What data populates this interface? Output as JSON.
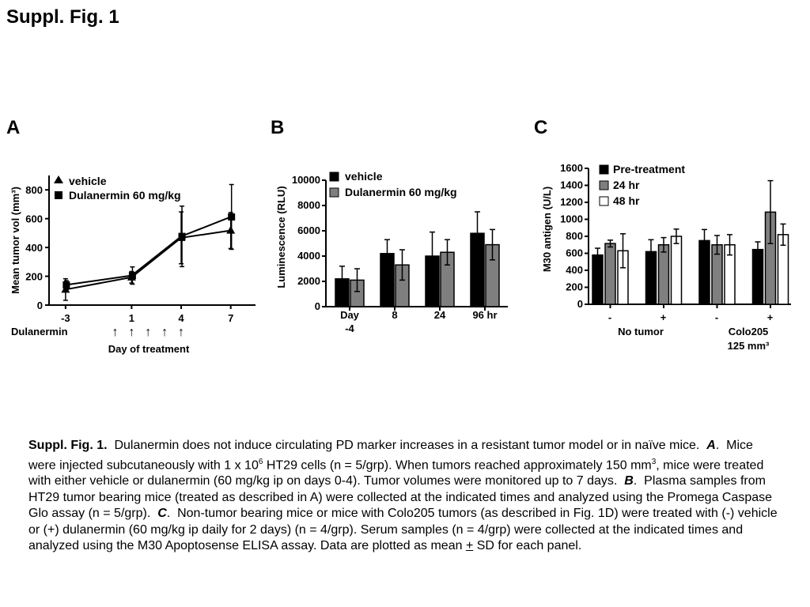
{
  "page": {
    "title": "Suppl. Fig. 1"
  },
  "colors": {
    "vehicle": "#000000",
    "dulanermin": "#7f7f7f",
    "pre_treatment": "#000000",
    "hr24": "#7f7f7f",
    "hr48": "#ffffff",
    "outline": "#000000"
  },
  "panels": {
    "a": "A",
    "b": "B",
    "c": "C"
  },
  "chart_data": [
    {
      "id": "A",
      "type": "line",
      "title": "",
      "xlabel": "Day of treatment",
      "ylabel": "Mean tumor vol (mm³)",
      "x": [
        -3,
        1,
        4,
        7
      ],
      "xlim": [
        -4,
        8.5
      ],
      "ylim": [
        0,
        900
      ],
      "yticks": [
        0,
        200,
        400,
        600,
        800
      ],
      "xticks": [
        -3,
        1,
        4,
        7
      ],
      "legend_position": "top-left",
      "series": [
        {
          "name": "vehicle",
          "marker": "triangle",
          "values": [
            108,
            193,
            467,
            518
          ],
          "errors": [
            75,
            40,
            180,
            125
          ]
        },
        {
          "name": "Dulanermin 60 mg/kg",
          "marker": "square",
          "values": [
            140,
            205,
            477,
            612
          ],
          "errors": [
            30,
            60,
            210,
            225
          ]
        }
      ],
      "dosing": {
        "label": "Dulanermin",
        "days": [
          0,
          1,
          2,
          3,
          4
        ],
        "marker": "↑"
      }
    },
    {
      "id": "B",
      "type": "bar",
      "title": "",
      "xlabel": "",
      "ylabel": "Luminescence (RLU)",
      "categories": [
        "Day -4",
        "8",
        "24",
        "96 hr"
      ],
      "ylim": [
        0,
        10000
      ],
      "yticks": [
        0,
        2000,
        4000,
        6000,
        8000,
        10000
      ],
      "legend_position": "top-left",
      "series": [
        {
          "name": "vehicle",
          "values": [
            2200,
            4200,
            4000,
            5800
          ],
          "errors": [
            1000,
            1100,
            1900,
            1700
          ]
        },
        {
          "name": "Dulanermin 60 mg/kg",
          "values": [
            2100,
            3300,
            4300,
            4900
          ],
          "errors": [
            900,
            1200,
            1000,
            1200
          ]
        }
      ]
    },
    {
      "id": "C",
      "type": "bar",
      "title": "",
      "xlabel": "",
      "ylabel": "M30 antigen (U/L)",
      "categories": [
        "-",
        "+",
        "-",
        "+"
      ],
      "groups": [
        "No tumor",
        "Colo205 125 mm³"
      ],
      "ylim": [
        0,
        1600
      ],
      "yticks": [
        0,
        200,
        400,
        600,
        800,
        1000,
        1200,
        1400,
        1600
      ],
      "legend_position": "top-left",
      "series": [
        {
          "name": "Pre-treatment",
          "values": [
            580,
            620,
            750,
            645
          ],
          "errors": [
            80,
            140,
            130,
            90
          ]
        },
        {
          "name": "24 hr",
          "values": [
            715,
            700,
            700,
            1085
          ],
          "errors": [
            40,
            85,
            110,
            370
          ]
        },
        {
          "name": "48 hr",
          "values": [
            630,
            800,
            700,
            820
          ],
          "errors": [
            200,
            85,
            120,
            125
          ]
        }
      ]
    }
  ],
  "chart_text": {
    "a_xlabel": "Day of treatment",
    "a_ylabel": "Mean tumor vol (mm³)",
    "a_dosing_label": "Dulanermin",
    "a_legend": [
      "vehicle",
      "Dulanermin 60 mg/kg"
    ],
    "b_ylabel": "Luminescence (RLU)",
    "b_categories": [
      "Day",
      "-4",
      "8",
      "24",
      "96 hr"
    ],
    "b_legend": [
      "vehicle",
      "Dulanermin 60 mg/kg"
    ],
    "c_ylabel": "M30 antigen (U/L)",
    "c_legend": [
      "Pre-treatment",
      "24 hr",
      "48 hr"
    ],
    "c_group_no_tumor": "No tumor",
    "c_group_colo": "Colo205",
    "c_group_colo_size": "125 mm³"
  },
  "caption": {
    "label": "Suppl. Fig. 1.",
    "intro": "Dulanermin does not induce circulating PD marker increases in a resistant tumor model or in naïve mice.",
    "a_letter": "A",
    "a_text_1": "Mice were injected subcutaneously with 1 x 10",
    "a_sup": "6",
    "a_text_2": " HT29 cells (n = 5/grp).  When tumors reached approximately 150 mm",
    "a_sup2": "3",
    "a_text_3": ", mice were treated with either vehicle or dulanermin (60 mg/kg ip on days 0-4).  Tumor volumes were monitored up to 7 days.",
    "b_letter": "B",
    "b_text": "Plasma samples from HT29 tumor bearing mice (treated as described in A) were collected at the indicated times and analyzed using the Promega Caspase Glo assay (n = 5/grp).",
    "c_letter": "C",
    "c_text_1": "Non-tumor bearing mice or mice with Colo205 tumors (as described in Fig. 1D) were treated with (-) vehicle or (+) dulanermin (60 mg/kg ip daily for 2 days) (n = 4/grp).  Serum samples (n = 4/grp) were collected at the indicated times and analyzed using the M30 Apoptosense ELISA assay.  Data are plotted as mean ",
    "pm": "+",
    "c_text_2": " SD for each panel."
  }
}
